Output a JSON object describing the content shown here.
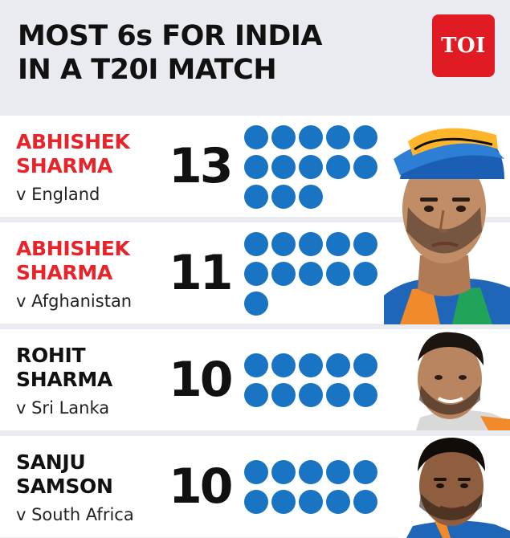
{
  "title": {
    "line1": "MOST 6s FOR INDIA",
    "line2": "IN A T20I MATCH"
  },
  "logo": {
    "text": "TOI",
    "color": "#e01b23"
  },
  "colors": {
    "highlight_name": "#e8232a",
    "normal_name": "#111111",
    "dot": "#1a74c4",
    "background": "#e9ebf1"
  },
  "chart_data": {
    "type": "table",
    "title": "MOST 6s FOR INDIA IN A T20I MATCH",
    "rows": [
      {
        "name_line1": "ABHISHEK",
        "name_line2": "SHARMA",
        "opponent": "v England",
        "sixes": 13,
        "highlight": true
      },
      {
        "name_line1": "ABHISHEK",
        "name_line2": "SHARMA",
        "opponent": "v Afghanistan",
        "sixes": 11,
        "highlight": true
      },
      {
        "name_line1": "ROHIT",
        "name_line2": "SHARMA",
        "opponent": "v Sri Lanka",
        "sixes": 10,
        "highlight": false
      },
      {
        "name_line1": "SANJU",
        "name_line2": "SAMSON",
        "opponent": "v South Africa",
        "sixes": 10,
        "highlight": false
      }
    ]
  }
}
